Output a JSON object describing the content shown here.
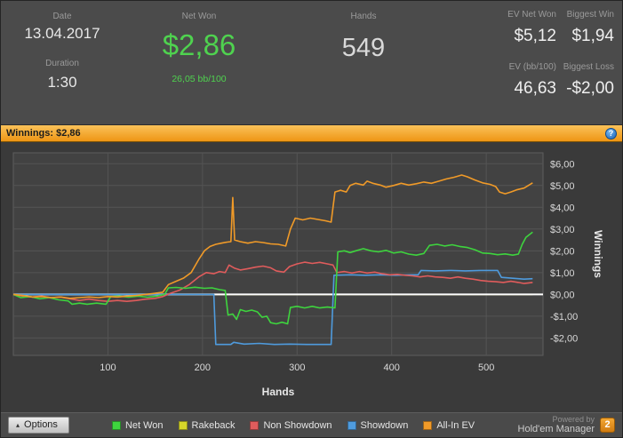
{
  "header": {
    "date": {
      "label": "Date",
      "value": "13.04.2017"
    },
    "duration": {
      "label": "Duration",
      "value": "1:30"
    },
    "net_won": {
      "label": "Net Won",
      "value": "$2,86",
      "sub": "26,05 bb/100"
    },
    "hands": {
      "label": "Hands",
      "value": "549"
    },
    "ev_net_won": {
      "label": "EV Net Won",
      "value": "$5,12"
    },
    "biggest_win": {
      "label": "Biggest Win",
      "value": "$1,94"
    },
    "ev_bb100": {
      "label": "EV (bb/100)",
      "value": "46,63"
    },
    "biggest_loss": {
      "label": "Biggest Loss",
      "value": "-$2,00"
    }
  },
  "winnings_bar": {
    "label": "Winnings: $2,86"
  },
  "icons": {
    "info": "?",
    "options_expand": "▴"
  },
  "colors": {
    "net_won": "#3ed43e",
    "rakeback": "#d6d62a",
    "non_showdown": "#e05c5c",
    "showdown": "#4f9bdd",
    "all_in_ev": "#f09a28",
    "zero_line": "#ffffff",
    "winnings_bar": "#ee9514"
  },
  "chart_data": {
    "type": "line",
    "title": "",
    "xlabel": "Hands",
    "ylabel": "Winnings",
    "xlim": [
      0,
      560
    ],
    "ylim": [
      -2.8,
      6.5
    ],
    "grid": true,
    "legend_position": "bottom",
    "x_ticks": [
      100,
      200,
      300,
      400,
      500
    ],
    "y_ticks": [
      6,
      5,
      4,
      3,
      2,
      1,
      0,
      -1,
      -2
    ],
    "y_tick_labels": [
      "$6,00",
      "$5,00",
      "$4,00",
      "$3,00",
      "$2,00",
      "$1,00",
      "$0,00",
      "-$1,00",
      "-$2,00"
    ],
    "zero_line": {
      "y": 0,
      "color": "#ffffff"
    },
    "series": [
      {
        "name": "Net Won",
        "color": "#3ed43e",
        "points": [
          [
            0,
            0
          ],
          [
            8,
            -0.15
          ],
          [
            18,
            -0.1
          ],
          [
            28,
            -0.2
          ],
          [
            38,
            -0.15
          ],
          [
            48,
            -0.25
          ],
          [
            58,
            -0.3
          ],
          [
            62,
            -0.45
          ],
          [
            70,
            -0.4
          ],
          [
            78,
            -0.45
          ],
          [
            88,
            -0.4
          ],
          [
            98,
            -0.45
          ],
          [
            103,
            -0.1
          ],
          [
            112,
            -0.08
          ],
          [
            122,
            -0.13
          ],
          [
            132,
            -0.08
          ],
          [
            142,
            -0.13
          ],
          [
            152,
            -0.08
          ],
          [
            160,
            0
          ],
          [
            164,
            0.3
          ],
          [
            172,
            0.32
          ],
          [
            182,
            0.28
          ],
          [
            192,
            0.33
          ],
          [
            202,
            0.28
          ],
          [
            210,
            0.3
          ],
          [
            218,
            0.22
          ],
          [
            224,
            0.18
          ],
          [
            227,
            -0.95
          ],
          [
            232,
            -0.9
          ],
          [
            236,
            -1.15
          ],
          [
            240,
            -0.7
          ],
          [
            246,
            -0.78
          ],
          [
            252,
            -0.72
          ],
          [
            258,
            -0.8
          ],
          [
            263,
            -1.05
          ],
          [
            268,
            -1
          ],
          [
            272,
            -1.3
          ],
          [
            278,
            -1.35
          ],
          [
            284,
            -1.28
          ],
          [
            290,
            -1.35
          ],
          [
            293,
            -0.6
          ],
          [
            300,
            -0.55
          ],
          [
            308,
            -0.62
          ],
          [
            316,
            -0.55
          ],
          [
            324,
            -0.62
          ],
          [
            332,
            -0.58
          ],
          [
            340,
            -0.62
          ],
          [
            343,
            1.95
          ],
          [
            350,
            2
          ],
          [
            356,
            1.92
          ],
          [
            362,
            2
          ],
          [
            370,
            2.1
          ],
          [
            378,
            2
          ],
          [
            386,
            1.95
          ],
          [
            394,
            2.02
          ],
          [
            402,
            1.9
          ],
          [
            410,
            1.95
          ],
          [
            418,
            1.85
          ],
          [
            426,
            1.8
          ],
          [
            434,
            1.88
          ],
          [
            440,
            2.25
          ],
          [
            448,
            2.3
          ],
          [
            456,
            2.22
          ],
          [
            464,
            2.28
          ],
          [
            472,
            2.2
          ],
          [
            480,
            2.15
          ],
          [
            488,
            2.05
          ],
          [
            496,
            1.9
          ],
          [
            504,
            1.88
          ],
          [
            512,
            1.82
          ],
          [
            520,
            1.86
          ],
          [
            528,
            1.8
          ],
          [
            534,
            1.85
          ],
          [
            538,
            2.3
          ],
          [
            542,
            2.62
          ],
          [
            549,
            2.86
          ]
        ]
      },
      {
        "name": "Rakeback",
        "color": "#d6d62a",
        "points": [
          [
            0,
            0
          ],
          [
            549,
            0
          ]
        ]
      },
      {
        "name": "Non Showdown",
        "color": "#e05c5c",
        "points": [
          [
            0,
            0
          ],
          [
            10,
            -0.08
          ],
          [
            20,
            -0.12
          ],
          [
            30,
            -0.08
          ],
          [
            40,
            -0.15
          ],
          [
            50,
            -0.12
          ],
          [
            60,
            -0.2
          ],
          [
            70,
            -0.28
          ],
          [
            80,
            -0.22
          ],
          [
            90,
            -0.28
          ],
          [
            100,
            -0.32
          ],
          [
            110,
            -0.28
          ],
          [
            120,
            -0.32
          ],
          [
            130,
            -0.28
          ],
          [
            140,
            -0.22
          ],
          [
            150,
            -0.18
          ],
          [
            158,
            -0.1
          ],
          [
            166,
            0.05
          ],
          [
            176,
            0.2
          ],
          [
            186,
            0.45
          ],
          [
            196,
            0.8
          ],
          [
            204,
            1
          ],
          [
            212,
            0.95
          ],
          [
            218,
            1.05
          ],
          [
            224,
            1
          ],
          [
            228,
            1.35
          ],
          [
            234,
            1.2
          ],
          [
            240,
            1.12
          ],
          [
            248,
            1.18
          ],
          [
            256,
            1.25
          ],
          [
            264,
            1.3
          ],
          [
            272,
            1.22
          ],
          [
            278,
            1.08
          ],
          [
            286,
            1.02
          ],
          [
            292,
            1.28
          ],
          [
            300,
            1.4
          ],
          [
            308,
            1.48
          ],
          [
            316,
            1.42
          ],
          [
            324,
            1.47
          ],
          [
            332,
            1.4
          ],
          [
            338,
            1.35
          ],
          [
            342,
            1
          ],
          [
            350,
            1.05
          ],
          [
            358,
            0.98
          ],
          [
            366,
            1.05
          ],
          [
            374,
            0.98
          ],
          [
            382,
            1.02
          ],
          [
            390,
            0.95
          ],
          [
            398,
            0.9
          ],
          [
            406,
            0.92
          ],
          [
            414,
            0.88
          ],
          [
            422,
            0.85
          ],
          [
            430,
            0.8
          ],
          [
            438,
            0.85
          ],
          [
            446,
            0.8
          ],
          [
            454,
            0.78
          ],
          [
            462,
            0.74
          ],
          [
            470,
            0.8
          ],
          [
            478,
            0.74
          ],
          [
            486,
            0.7
          ],
          [
            494,
            0.64
          ],
          [
            502,
            0.6
          ],
          [
            510,
            0.58
          ],
          [
            518,
            0.55
          ],
          [
            526,
            0.6
          ],
          [
            534,
            0.55
          ],
          [
            540,
            0.5
          ],
          [
            549,
            0.55
          ]
        ]
      },
      {
        "name": "Showdown",
        "color": "#4f9bdd",
        "points": [
          [
            0,
            0
          ],
          [
            212,
            0
          ],
          [
            214,
            -2.3
          ],
          [
            230,
            -2.3
          ],
          [
            233,
            -2.2
          ],
          [
            244,
            -2.28
          ],
          [
            260,
            -2.25
          ],
          [
            276,
            -2.3
          ],
          [
            292,
            -2.28
          ],
          [
            310,
            -2.3
          ],
          [
            336,
            -2.3
          ],
          [
            339,
            0.88
          ],
          [
            356,
            0.9
          ],
          [
            372,
            0.88
          ],
          [
            388,
            0.9
          ],
          [
            404,
            0.88
          ],
          [
            420,
            0.9
          ],
          [
            428,
            0.9
          ],
          [
            431,
            1.1
          ],
          [
            446,
            1.08
          ],
          [
            462,
            1.1
          ],
          [
            478,
            1.08
          ],
          [
            494,
            1.1
          ],
          [
            512,
            1.1
          ],
          [
            516,
            0.78
          ],
          [
            528,
            0.74
          ],
          [
            540,
            0.7
          ],
          [
            549,
            0.72
          ]
        ]
      },
      {
        "name": "All-In EV",
        "color": "#f09a28",
        "points": [
          [
            0,
            0
          ],
          [
            10,
            -0.05
          ],
          [
            20,
            -0.12
          ],
          [
            30,
            -0.1
          ],
          [
            40,
            -0.15
          ],
          [
            50,
            -0.12
          ],
          [
            60,
            -0.18
          ],
          [
            70,
            -0.15
          ],
          [
            80,
            -0.12
          ],
          [
            90,
            -0.15
          ],
          [
            100,
            -0.1
          ],
          [
            110,
            -0.12
          ],
          [
            120,
            -0.08
          ],
          [
            130,
            -0.05
          ],
          [
            140,
            0
          ],
          [
            150,
            0.05
          ],
          [
            158,
            0.1
          ],
          [
            164,
            0.45
          ],
          [
            172,
            0.6
          ],
          [
            180,
            0.75
          ],
          [
            188,
            1
          ],
          [
            196,
            1.6
          ],
          [
            202,
            2
          ],
          [
            208,
            2.2
          ],
          [
            214,
            2.3
          ],
          [
            220,
            2.35
          ],
          [
            226,
            2.4
          ],
          [
            230,
            2.42
          ],
          [
            232,
            4.45
          ],
          [
            234,
            2.5
          ],
          [
            240,
            2.42
          ],
          [
            248,
            2.35
          ],
          [
            256,
            2.42
          ],
          [
            264,
            2.38
          ],
          [
            272,
            2.32
          ],
          [
            280,
            2.3
          ],
          [
            288,
            2.22
          ],
          [
            293,
            3
          ],
          [
            298,
            3.5
          ],
          [
            306,
            3.42
          ],
          [
            314,
            3.5
          ],
          [
            322,
            3.44
          ],
          [
            330,
            3.38
          ],
          [
            336,
            3.32
          ],
          [
            340,
            4.7
          ],
          [
            346,
            4.78
          ],
          [
            352,
            4.7
          ],
          [
            356,
            5
          ],
          [
            362,
            5.1
          ],
          [
            370,
            5.02
          ],
          [
            374,
            5.2
          ],
          [
            380,
            5.1
          ],
          [
            388,
            5.02
          ],
          [
            394,
            4.92
          ],
          [
            402,
            5
          ],
          [
            410,
            5.1
          ],
          [
            418,
            5.02
          ],
          [
            426,
            5.08
          ],
          [
            434,
            5.16
          ],
          [
            442,
            5.1
          ],
          [
            450,
            5.2
          ],
          [
            458,
            5.3
          ],
          [
            466,
            5.38
          ],
          [
            474,
            5.48
          ],
          [
            480,
            5.4
          ],
          [
            488,
            5.25
          ],
          [
            496,
            5.12
          ],
          [
            504,
            5.05
          ],
          [
            510,
            4.95
          ],
          [
            514,
            4.7
          ],
          [
            520,
            4.62
          ],
          [
            526,
            4.7
          ],
          [
            532,
            4.8
          ],
          [
            540,
            4.88
          ],
          [
            549,
            5.12
          ]
        ]
      }
    ]
  },
  "footer": {
    "options_label": "Options",
    "powered_by": "Powered by",
    "brand": "Hold'em Manager",
    "badge": "2"
  }
}
